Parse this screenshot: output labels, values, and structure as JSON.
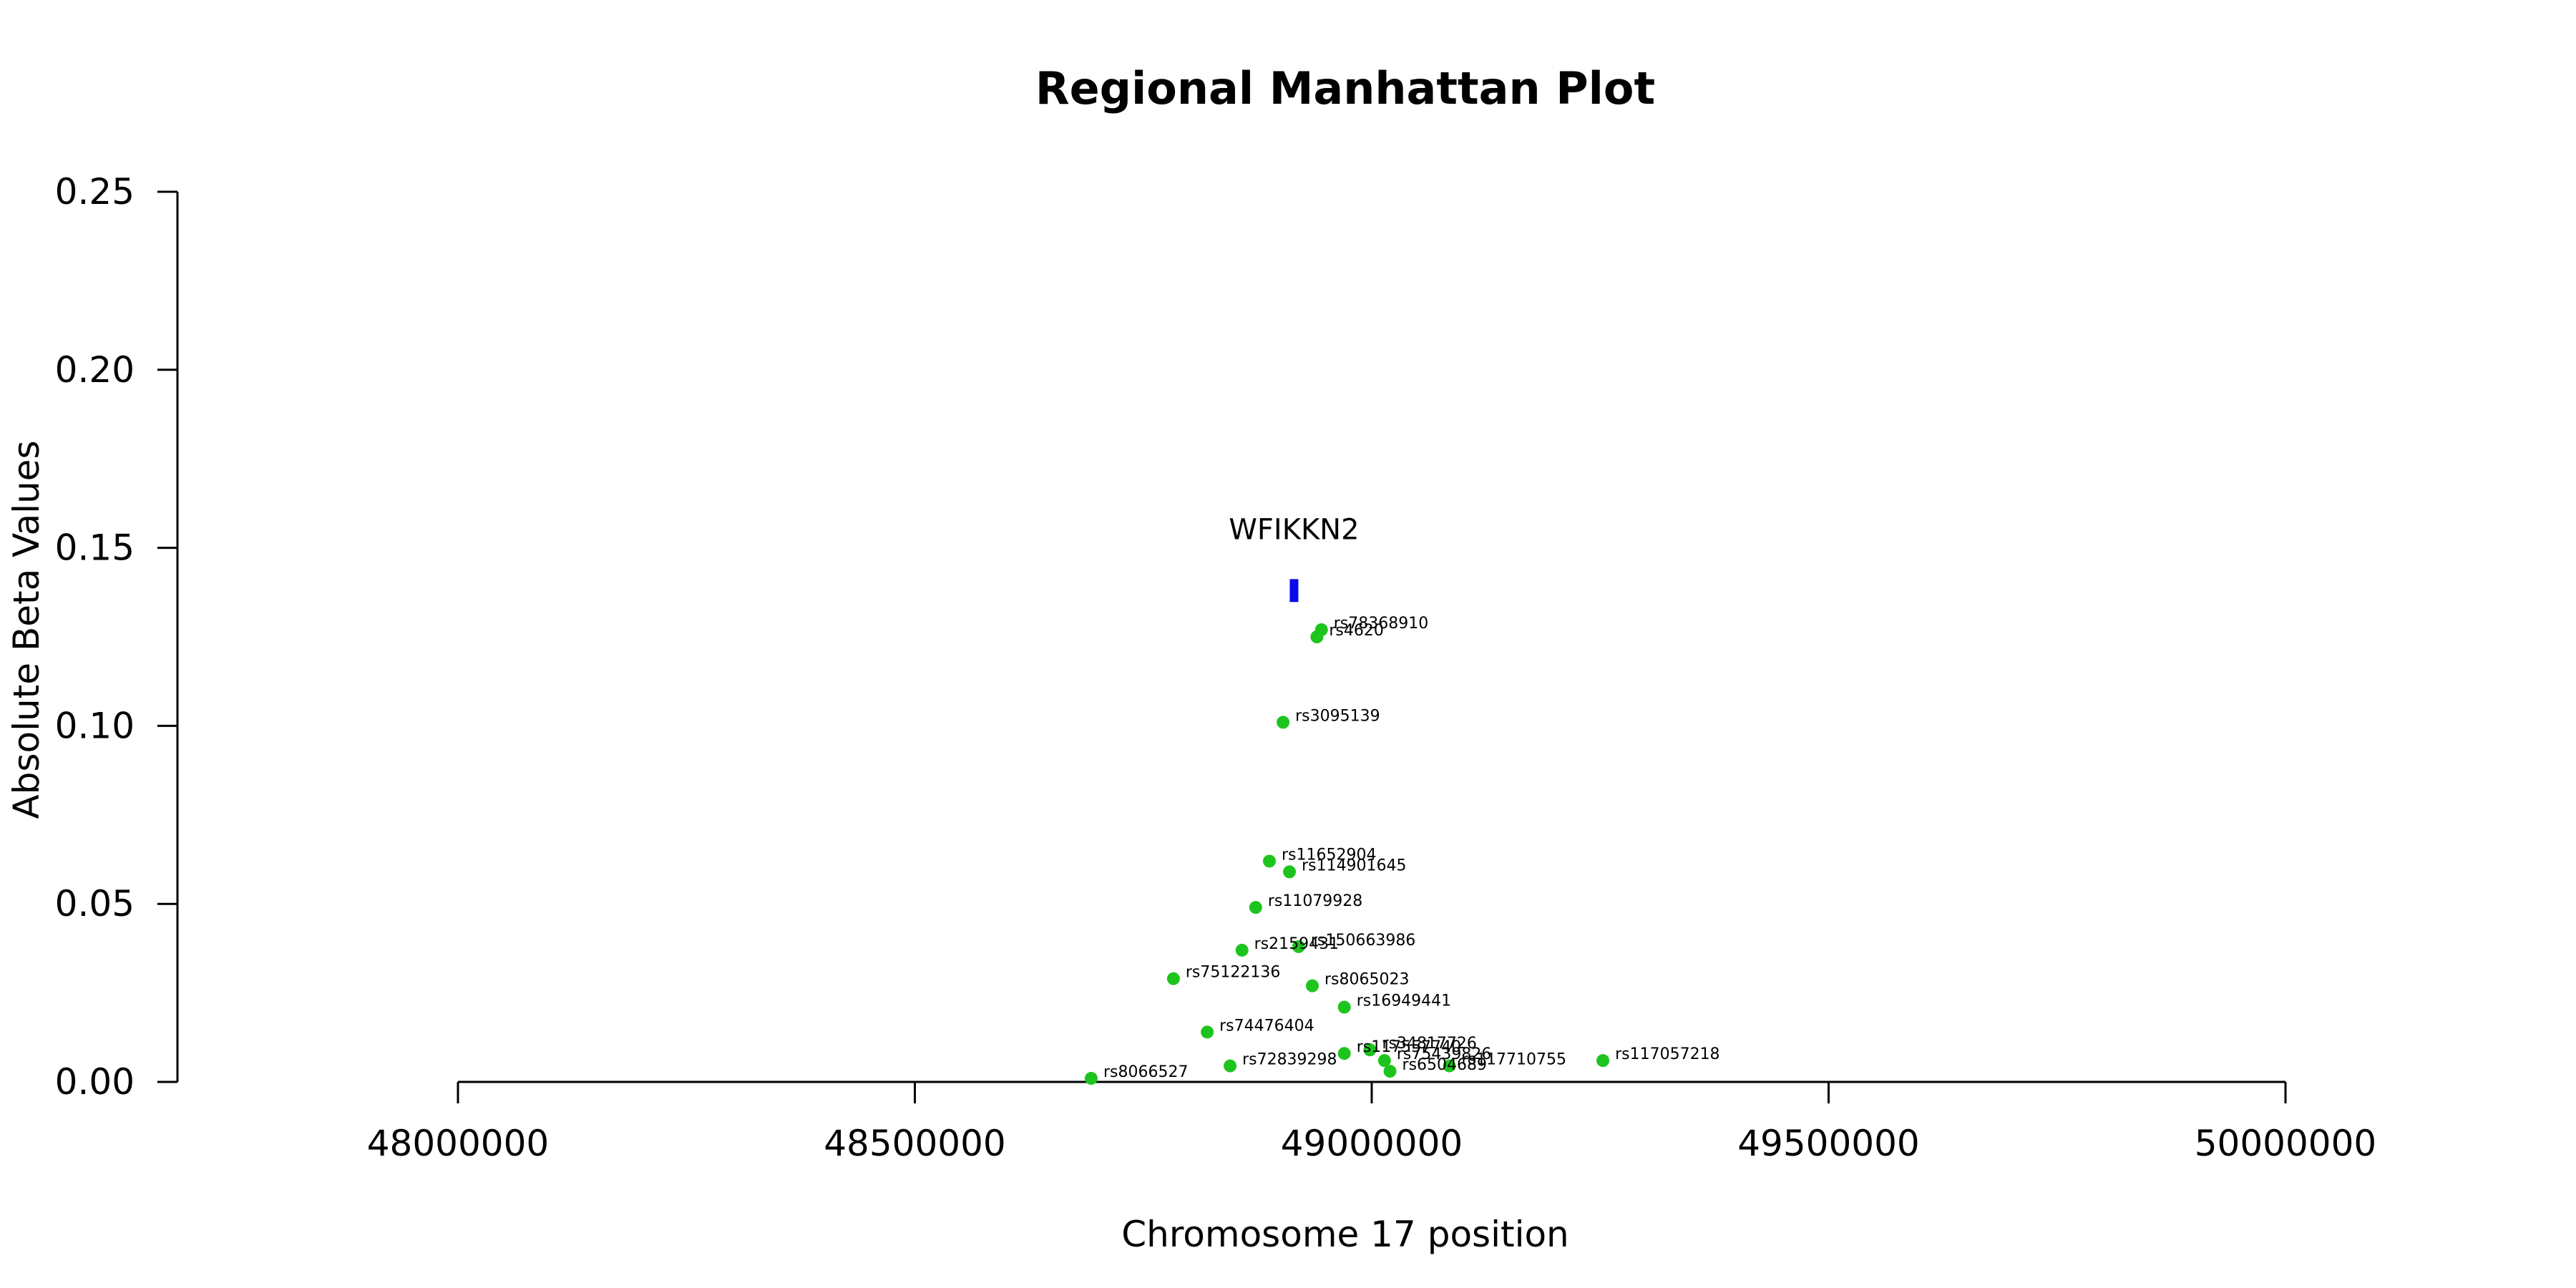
{
  "chart_data": {
    "type": "scatter",
    "title": "Regional Manhattan Plot",
    "xlabel": "Chromosome 17 position",
    "ylabel": "Absolute Beta Values",
    "xlim": [
      47700000,
      50300000
    ],
    "ylim": [
      0,
      0.25
    ],
    "x_ticks": [
      48000000,
      48500000,
      49000000,
      49500000,
      50000000
    ],
    "x_tick_labels": [
      "48000000",
      "48500000",
      "49000000",
      "49500000",
      "50000000"
    ],
    "y_ticks": [
      0,
      0.05,
      0.1,
      0.15,
      0.2,
      0.25
    ],
    "y_tick_labels": [
      "0.00",
      "0.05",
      "0.10",
      "0.15",
      "0.20",
      "0.25"
    ],
    "grid": false,
    "point_color": "#1ec41e",
    "gene_color": "#0a0aeb",
    "gene": {
      "name": "WFIKKN2",
      "start": 48910000,
      "end": 48920000,
      "y": 0.138
    },
    "points": [
      {
        "label": "rs78368910",
        "x": 48945000,
        "y": 0.127
      },
      {
        "label": "rs4620",
        "x": 48940000,
        "y": 0.125
      },
      {
        "label": "rs3095139",
        "x": 48903000,
        "y": 0.101
      },
      {
        "label": "rs11652904",
        "x": 48888000,
        "y": 0.062
      },
      {
        "label": "rs114901645",
        "x": 48910000,
        "y": 0.059
      },
      {
        "label": "rs11079928",
        "x": 48873000,
        "y": 0.049
      },
      {
        "label": "rs2159431",
        "x": 48858000,
        "y": 0.037
      },
      {
        "label": "rs150663986",
        "x": 48920000,
        "y": 0.038
      },
      {
        "label": "rs75122136",
        "x": 48783000,
        "y": 0.029
      },
      {
        "label": "rs8065023",
        "x": 48935000,
        "y": 0.027
      },
      {
        "label": "rs16949441",
        "x": 48970000,
        "y": 0.021
      },
      {
        "label": "rs74476404",
        "x": 48820000,
        "y": 0.014
      },
      {
        "label": "rs34817726",
        "x": 48998000,
        "y": 0.009
      },
      {
        "label": "rs117557740",
        "x": 48970000,
        "y": 0.008
      },
      {
        "label": "rs72839298",
        "x": 48845000,
        "y": 0.0045
      },
      {
        "label": "rs75439826",
        "x": 49014000,
        "y": 0.006
      },
      {
        "label": "rs6504689",
        "x": 49020000,
        "y": 0.003
      },
      {
        "label": "rs117710755",
        "x": 49085000,
        "y": 0.0045
      },
      {
        "label": "rs117057218",
        "x": 49253000,
        "y": 0.006
      },
      {
        "label": "rs8066527",
        "x": 48693000,
        "y": 0.001
      }
    ]
  }
}
